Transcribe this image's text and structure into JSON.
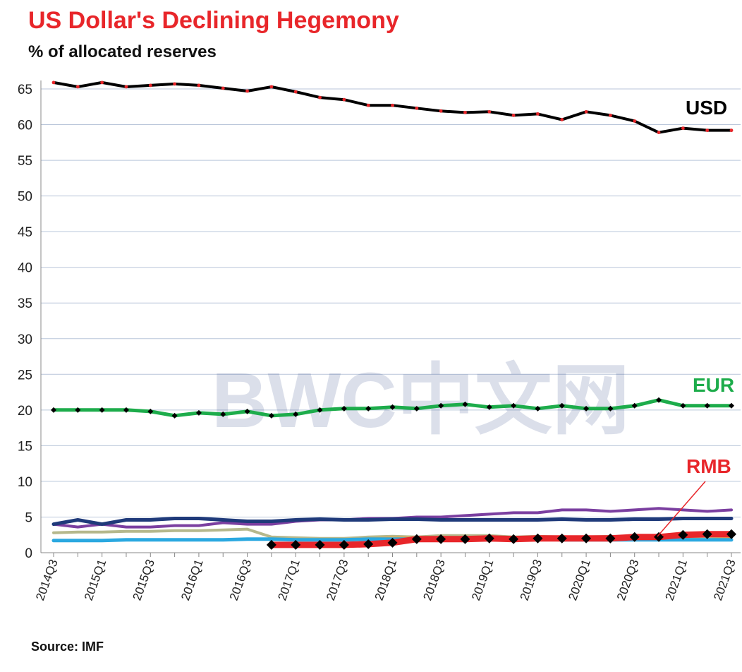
{
  "title": "US Dollar's  Declining Hegemony",
  "subtitle": "% of allocated reserves",
  "source": "Source: IMF",
  "watermark": "BWC中文网",
  "chart_data": {
    "type": "line",
    "ylim": [
      0,
      65
    ],
    "yticks": [
      0,
      5,
      10,
      15,
      20,
      25,
      30,
      35,
      40,
      45,
      50,
      55,
      60,
      65
    ],
    "grid": true,
    "x": [
      "2014Q3",
      "2014Q4",
      "2015Q1",
      "2015Q2",
      "2015Q3",
      "2015Q4",
      "2016Q1",
      "2016Q2",
      "2016Q3",
      "2016Q4",
      "2017Q1",
      "2017Q2",
      "2017Q3",
      "2017Q4",
      "2018Q1",
      "2018Q2",
      "2018Q3",
      "2018Q4",
      "2019Q1",
      "2019Q2",
      "2019Q3",
      "2019Q4",
      "2020Q1",
      "2020Q2",
      "2020Q3",
      "2020Q4",
      "2021Q1",
      "2021Q2",
      "2021Q3"
    ],
    "xtick_labels": [
      "2014Q3",
      "2015Q1",
      "2015Q3",
      "2016Q1",
      "2016Q3",
      "2017Q1",
      "2017Q3",
      "2018Q1",
      "2018Q3",
      "2019Q1",
      "2019Q3",
      "2020Q1",
      "2020Q3",
      "2021Q1",
      "2021Q3"
    ],
    "series": [
      {
        "name": "USD",
        "color": "#000000",
        "marker_color": "#e8262a",
        "width": 4,
        "values": [
          65.9,
          65.3,
          65.9,
          65.3,
          65.5,
          65.7,
          65.5,
          65.1,
          64.7,
          65.3,
          64.6,
          63.8,
          63.5,
          62.7,
          62.7,
          62.3,
          61.9,
          61.7,
          61.8,
          61.3,
          61.5,
          60.7,
          61.8,
          61.3,
          60.5,
          58.9,
          59.5,
          59.2,
          59.2
        ]
      },
      {
        "name": "EUR",
        "color": "#1dac4b",
        "marker_color": "#000000",
        "width": 5,
        "values": [
          20.0,
          20.0,
          20.0,
          20.0,
          19.8,
          19.2,
          19.6,
          19.4,
          19.8,
          19.2,
          19.4,
          20.0,
          20.2,
          20.2,
          20.4,
          20.2,
          20.6,
          20.8,
          20.4,
          20.6,
          20.2,
          20.6,
          20.2,
          20.2,
          20.6,
          21.4,
          20.6,
          20.6,
          20.6
        ]
      },
      {
        "name": "",
        "color": "#7b3fa0",
        "width": 4,
        "values": [
          4.0,
          3.6,
          4.0,
          3.6,
          3.6,
          3.8,
          3.8,
          4.2,
          4.0,
          4.0,
          4.4,
          4.6,
          4.6,
          4.8,
          4.8,
          5.0,
          5.0,
          5.2,
          5.4,
          5.6,
          5.6,
          6.0,
          6.0,
          5.8,
          6.0,
          6.2,
          6.0,
          5.8,
          6.0
        ]
      },
      {
        "name": "",
        "color": "#1f3a7a",
        "width": 5,
        "values": [
          4.0,
          4.6,
          4.0,
          4.6,
          4.6,
          4.8,
          4.8,
          4.6,
          4.4,
          4.4,
          4.6,
          4.7,
          4.6,
          4.6,
          4.7,
          4.7,
          4.6,
          4.6,
          4.6,
          4.6,
          4.6,
          4.7,
          4.6,
          4.6,
          4.7,
          4.7,
          4.8,
          4.8,
          4.8
        ]
      },
      {
        "name": "",
        "color": "#b5b88c",
        "width": 4,
        "values": [
          2.8,
          2.9,
          2.9,
          3.0,
          3.0,
          3.1,
          3.1,
          3.2,
          3.3,
          2.2,
          2.1,
          2.0,
          2.0,
          2.2,
          2.3,
          2.2,
          2.4,
          2.4,
          2.4,
          2.2,
          2.3,
          2.2,
          2.2,
          2.3,
          2.2,
          2.2,
          2.1,
          2.3,
          2.2
        ]
      },
      {
        "name": "",
        "color": "#f2a43a",
        "width": 3,
        "values": [
          null,
          null,
          null,
          null,
          null,
          null,
          null,
          null,
          null,
          1.8,
          1.8,
          1.9,
          1.9,
          2.0,
          2.1,
          2.1,
          2.0,
          2.1,
          2.0,
          2.1,
          2.1,
          2.0,
          1.9,
          2.0,
          2.1,
          2.1,
          1.9,
          1.9,
          2.0
        ]
      },
      {
        "name": "",
        "color": "#2aa8e0",
        "width": 5,
        "values": [
          1.7,
          1.7,
          1.7,
          1.8,
          1.8,
          1.8,
          1.8,
          1.8,
          1.9,
          1.9,
          1.8,
          1.8,
          1.8,
          1.9,
          1.9,
          1.9,
          1.9,
          1.9,
          1.8,
          1.9,
          1.9,
          1.8,
          1.8,
          1.8,
          1.8,
          1.8,
          1.8,
          1.8,
          1.8
        ]
      },
      {
        "name": "RMB",
        "color": "#e8262a",
        "marker_color": "#000000",
        "width": 9,
        "values": [
          null,
          null,
          null,
          null,
          null,
          null,
          null,
          null,
          null,
          1.1,
          1.1,
          1.1,
          1.1,
          1.2,
          1.4,
          1.9,
          1.9,
          1.9,
          2.0,
          1.9,
          2.0,
          2.0,
          2.0,
          2.0,
          2.2,
          2.2,
          2.5,
          2.6,
          2.6
        ]
      }
    ],
    "labels": {
      "usd": "USD",
      "eur": "EUR",
      "rmb": "RMB"
    }
  }
}
